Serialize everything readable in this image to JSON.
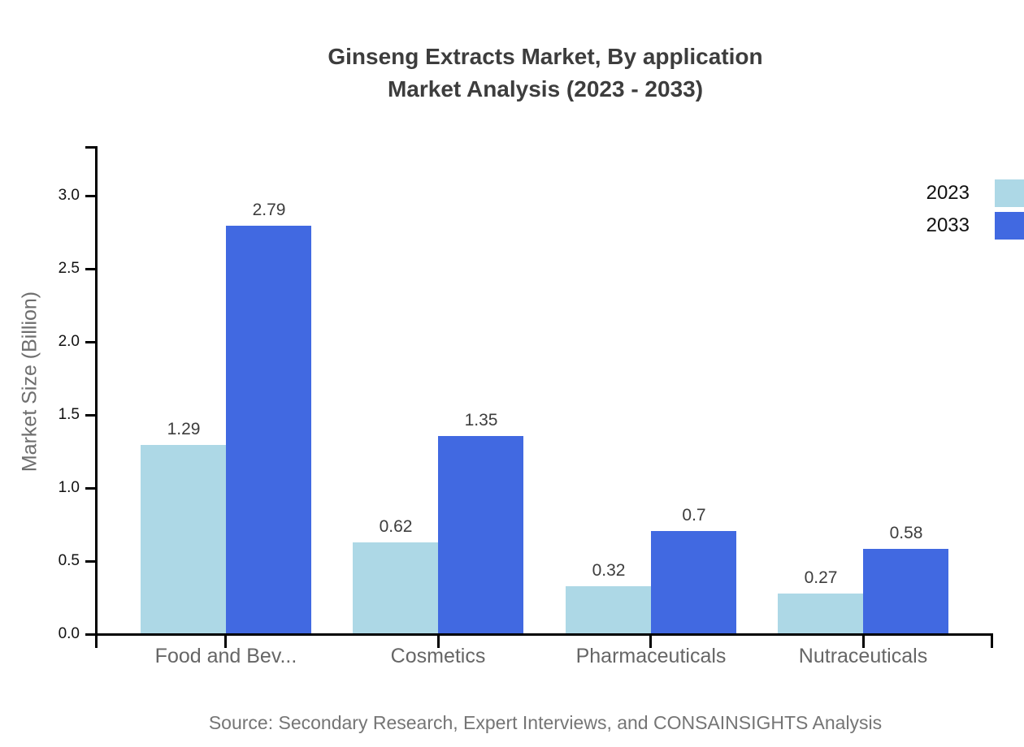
{
  "title": {
    "line1": "Ginseng Extracts Market, By application",
    "line2": "Market Analysis (2023 - 2033)"
  },
  "source_note": "Source: Secondary Research, Expert Interviews, and CONSAINSIGHTS Analysis",
  "colors": {
    "series_2023": "#ADD8E6",
    "series_2033": "#4169E1",
    "axis": "#000000",
    "title_text": "#3d3d3d",
    "category_text": "#666666",
    "tick_text": "#111111",
    "value_label_text": "#3d3d3d",
    "source_text": "#757575"
  },
  "chart_data": {
    "type": "bar",
    "title": "Ginseng Extracts Market, By application Market Analysis (2023 - 2033)",
    "categories": [
      "Food and Bev...",
      "Cosmetics",
      "Pharmaceuticals",
      "Nutraceuticals"
    ],
    "series": [
      {
        "name": "2023",
        "color": "#ADD8E6",
        "values": [
          1.29,
          0.62,
          0.32,
          0.27
        ]
      },
      {
        "name": "2033",
        "color": "#4169E1",
        "values": [
          2.79,
          1.35,
          0.7,
          0.58
        ]
      }
    ],
    "xlabel": "",
    "ylabel": "Market Size (Billion)",
    "ylim": [
      0,
      3.35
    ],
    "yticks": [
      0.0,
      0.5,
      1.0,
      1.5,
      2.0,
      2.5,
      3.0
    ],
    "grid": false,
    "legend_position": "top-right",
    "value_labels": true,
    "source": "Source: Secondary Research, Expert Interviews, and CONSAINSIGHTS Analysis"
  }
}
